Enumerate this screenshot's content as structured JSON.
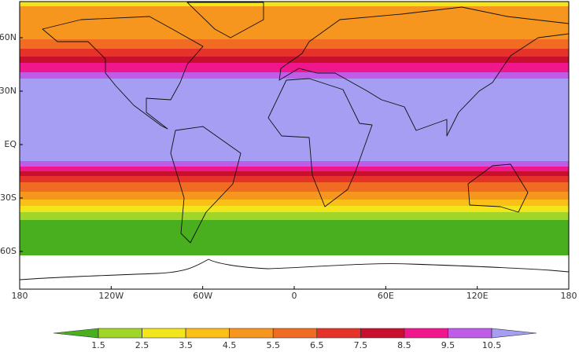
{
  "map": {
    "x_labels": [
      "180",
      "120W",
      "60W",
      "0",
      "60E",
      "120E",
      "180"
    ],
    "y_labels": [
      "60N",
      "30N",
      "EQ",
      "30S",
      "60S"
    ]
  },
  "colorbar": {
    "ticks": [
      1.5,
      2.5,
      3.5,
      4.5,
      5.5,
      6.5,
      7.5,
      8.5,
      9.5,
      10.5
    ],
    "colors": [
      "#4aaf1e",
      "#a2d52a",
      "#f2e51c",
      "#fbc018",
      "#f7961f",
      "#f06c22",
      "#e6332a",
      "#c8102e",
      "#f0168c",
      "#bf5ce8",
      "#a69ef2"
    ]
  }
}
